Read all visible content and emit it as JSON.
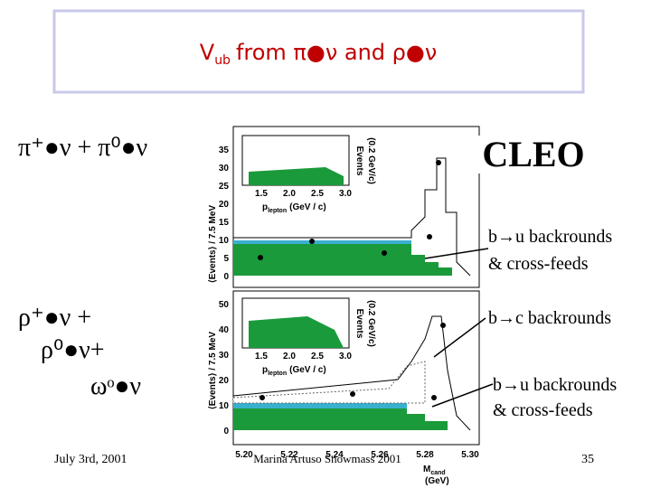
{
  "header": {
    "title_main": "V",
    "title_sub": "ub",
    "title_rest": "from π●ν and ρ●ν"
  },
  "left_labels": {
    "pi": "π⁺●ν + π⁰●ν",
    "rho1": "ρ⁺●ν +",
    "rho2": "ρ⁰●ν+",
    "omega": "ωᵒ●ν"
  },
  "right_labels": {
    "experiment": "CLEO",
    "bu1_line1": "b→u backrounds",
    "bu1_line2": "& cross-feeds",
    "bc": "b→c backrounds",
    "bu2_line1": "b→u backrounds",
    "bu2_line2": "& cross-feeds"
  },
  "plot": {
    "y_label": "⟨Events⟩ / 7.5 MeV",
    "x_label": "M",
    "x_label_sub": "cand",
    "x_label_unit": "(GeV)",
    "top_yticks": [
      "35",
      "30",
      "25",
      "20",
      "15",
      "10",
      "5",
      "0"
    ],
    "bottom_yticks": [
      "50",
      "40",
      "30",
      "20",
      "10",
      "0"
    ],
    "xticks": [
      "5.20",
      "5.22",
      "5.24",
      "5.26",
      "5.28",
      "5.30"
    ],
    "inset_xticks": [
      "1.5",
      "2.0",
      "2.5",
      "3.0"
    ],
    "inset_y_label": "Events",
    "inset_y_unit": "(0.2 GeV/c)",
    "inset_x_label": "p",
    "inset_x_sub": "lepton",
    "inset_x_unit": "(GeV / c)"
  },
  "footer": {
    "date": "July 3rd, 2001",
    "author": "Marina Artuso Snowmass 2001",
    "page": "35"
  }
}
